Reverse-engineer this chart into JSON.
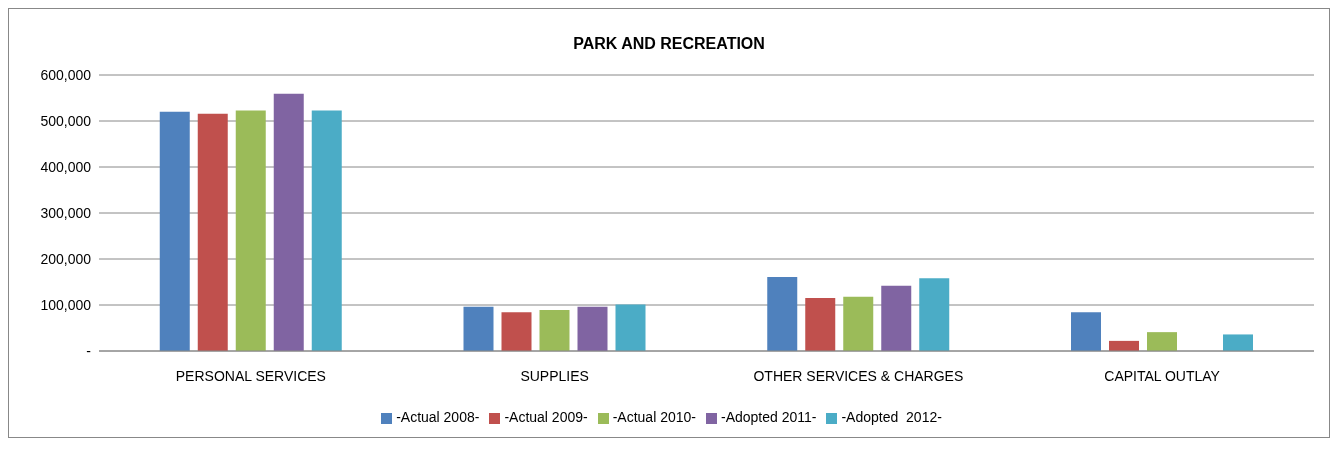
{
  "chart_data": {
    "type": "bar",
    "title": "PARK AND RECREATION",
    "categories": [
      "PERSONAL SERVICES",
      "SUPPLIES",
      "OTHER SERVICES & CHARGES",
      "CAPITAL OUTLAY"
    ],
    "series": [
      {
        "name": "-Actual 2008-",
        "color": "#4f81bd",
        "values": [
          520000,
          96000,
          161000,
          84000
        ]
      },
      {
        "name": "-Actual 2009-",
        "color": "#c0504d",
        "values": [
          516000,
          84000,
          115000,
          22000
        ]
      },
      {
        "name": "-Actual 2010-",
        "color": "#9bbb59",
        "values": [
          523000,
          89000,
          118000,
          41000
        ]
      },
      {
        "name": "-Adopted 2011-",
        "color": "#8064a2",
        "values": [
          559000,
          96000,
          142000,
          null
        ]
      },
      {
        "name": "-Adopted  2012-",
        "color": "#4bacc6",
        "values": [
          523000,
          101000,
          158000,
          36000
        ]
      }
    ],
    "ylim": [
      0,
      600000
    ],
    "yticks": [
      {
        "value": 0,
        "label": "-"
      },
      {
        "value": 100000,
        "label": "100,000"
      },
      {
        "value": 200000,
        "label": "200,000"
      },
      {
        "value": 300000,
        "label": "300,000"
      },
      {
        "value": 400000,
        "label": "400,000"
      },
      {
        "value": 500000,
        "label": "500,000"
      },
      {
        "value": 600000,
        "label": "600,000"
      }
    ],
    "grid": "y",
    "legend": "bottom"
  }
}
